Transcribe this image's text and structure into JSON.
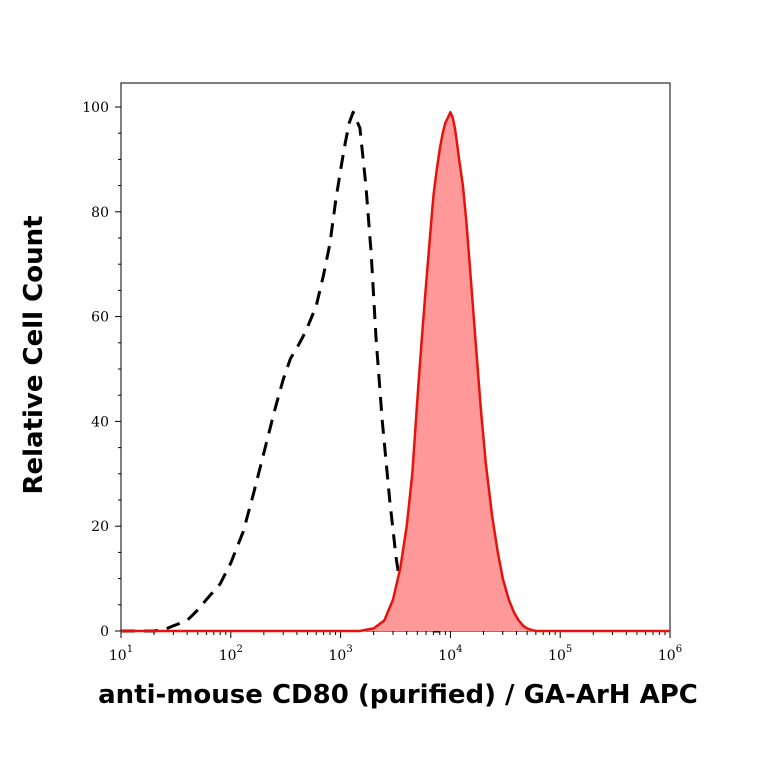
{
  "chart_data": {
    "type": "area",
    "xlabel": "anti-mouse CD80 (purified) / GA-ArH APC",
    "ylabel": "Relative Cell Count",
    "x_scale": "log",
    "xlim": [
      10,
      1000000
    ],
    "ylim": [
      0,
      100
    ],
    "x_ticks": [
      {
        "base": "10",
        "exp": "1"
      },
      {
        "base": "10",
        "exp": "2"
      },
      {
        "base": "10",
        "exp": "3"
      },
      {
        "base": "10",
        "exp": "4"
      },
      {
        "base": "10",
        "exp": "5"
      },
      {
        "base": "10",
        "exp": "6"
      }
    ],
    "y_ticks": [
      "0",
      "20",
      "40",
      "60",
      "80",
      "100"
    ],
    "grid": false,
    "series": [
      {
        "style": "dashed",
        "color": "#000000",
        "fill": "none",
        "x": [
          10,
          20,
          25,
          30,
          40,
          50,
          60,
          80,
          100,
          130,
          160,
          200,
          250,
          300,
          350,
          400,
          450,
          500,
          600,
          700,
          800,
          900,
          1000,
          1100,
          1200,
          1300,
          1500,
          1700,
          1900,
          2100,
          2400,
          2800,
          3200,
          3600,
          4000,
          4500,
          5000,
          5500,
          6000,
          7000,
          8000
        ],
        "y": [
          0,
          0,
          0.3,
          1,
          2,
          4,
          6,
          9,
          13,
          19,
          26,
          34,
          42,
          48,
          52,
          54,
          56,
          58,
          62,
          68,
          74,
          82,
          88,
          93,
          97,
          99,
          96,
          85,
          72,
          56,
          40,
          25,
          14,
          7,
          3,
          1.5,
          0.8,
          0.4,
          0.2,
          0,
          0
        ]
      },
      {
        "style": "solid",
        "color": "#e8120c",
        "fill": "#ff9999",
        "x": [
          10,
          1500,
          2000,
          2500,
          3000,
          3500,
          4000,
          4500,
          5000,
          5500,
          6000,
          6500,
          7000,
          7500,
          8000,
          8500,
          9000,
          9500,
          10000,
          10500,
          11000,
          11500,
          12000,
          13000,
          14000,
          15000,
          17000,
          19000,
          21000,
          24000,
          27000,
          30000,
          34000,
          38000,
          42000,
          46000,
          50000,
          55000,
          60000,
          1000000
        ],
        "y": [
          0,
          0,
          0.5,
          2,
          6,
          12,
          20,
          30,
          44,
          56,
          66,
          75,
          83,
          88,
          92,
          95,
          97,
          98,
          99,
          98,
          96,
          93,
          90,
          85,
          78,
          70,
          55,
          42,
          32,
          22,
          15,
          10,
          6,
          3.5,
          2,
          1,
          0.5,
          0.2,
          0,
          0
        ]
      }
    ]
  }
}
